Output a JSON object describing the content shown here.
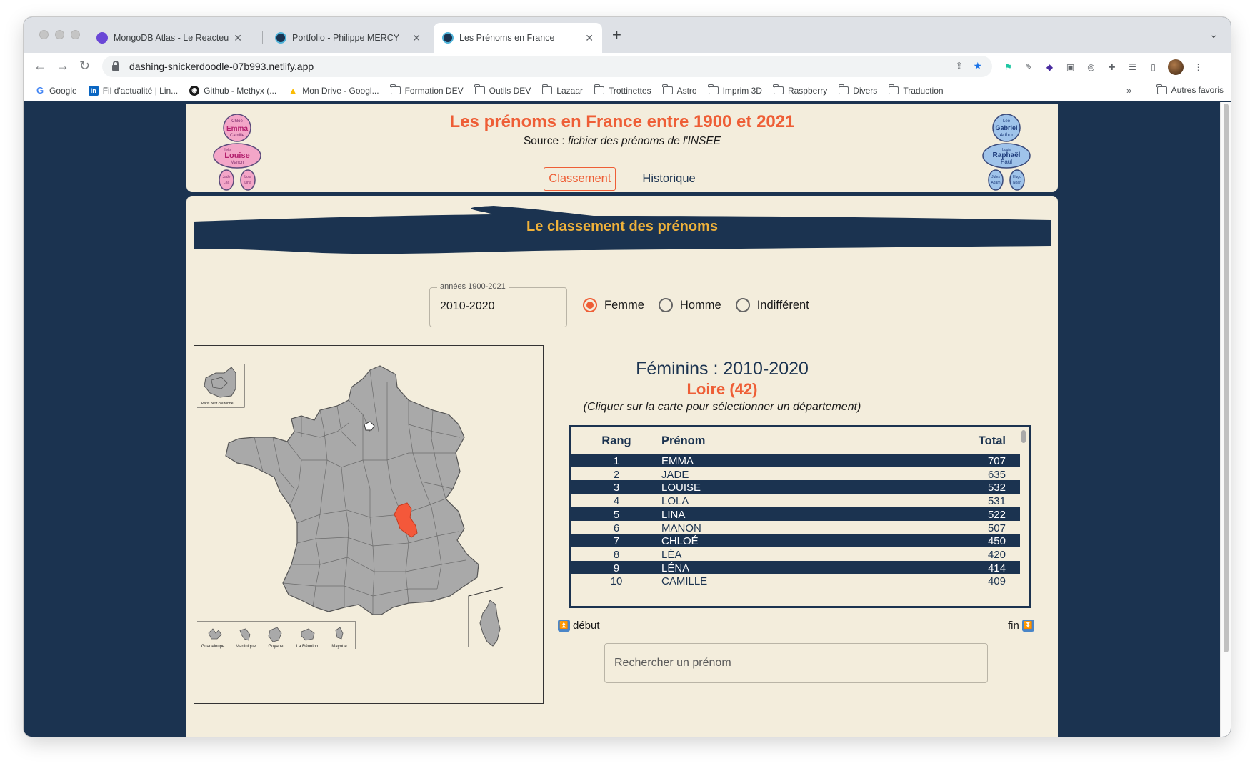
{
  "browser": {
    "tabs": [
      {
        "label": "MongoDB Atlas - Le Reacteur",
        "favicon_color": "#6a47d6"
      },
      {
        "label": "Portfolio - Philippe MERCY",
        "favicon_color": "#1b3350"
      },
      {
        "label": "Les Prénoms en France",
        "favicon_color": "#1b3350"
      }
    ],
    "url": "dashing-snickerdoodle-07b993.netlify.app",
    "bookmarks": [
      {
        "label": "Google",
        "kind": "google"
      },
      {
        "label": "Fil d'actualité | Lin...",
        "kind": "linkedin"
      },
      {
        "label": "Github - Methyx (...",
        "kind": "github"
      },
      {
        "label": "Mon Drive - Googl...",
        "kind": "drive"
      },
      {
        "label": "Formation DEV",
        "kind": "folder"
      },
      {
        "label": "Outils DEV",
        "kind": "folder"
      },
      {
        "label": "Lazaar",
        "kind": "folder"
      },
      {
        "label": "Trottinettes",
        "kind": "folder"
      },
      {
        "label": "Astro",
        "kind": "folder"
      },
      {
        "label": "Imprim 3D",
        "kind": "folder"
      },
      {
        "label": "Raspberry",
        "kind": "folder"
      },
      {
        "label": "Divers",
        "kind": "folder"
      },
      {
        "label": "Traduction",
        "kind": "folder"
      }
    ],
    "bookmarks_more": "»",
    "other_bookmarks": "Autres favoris"
  },
  "header": {
    "title": "Les prénoms en France entre 1900 et 2021",
    "source_label": "Source :",
    "source_text": "fichier des prénoms de l'INSEE",
    "nav": [
      {
        "label": "Classement",
        "active": true
      },
      {
        "label": "Historique",
        "active": false
      }
    ],
    "girl_names": [
      "Chloé",
      "Emma",
      "Camille",
      "Inès",
      "Louise",
      "Manon",
      "Jade",
      "Léa",
      "Lola",
      "Lina"
    ],
    "boy_names": [
      "Léo",
      "Gabriel",
      "Arthur",
      "Louis",
      "Raphaël",
      "Paul",
      "Jules",
      "Adam",
      "Hugo",
      "Noah"
    ]
  },
  "main": {
    "banner_title": "Le classement des prénoms",
    "period_legend": "années 1900-2021",
    "period_value": "2010-2020",
    "gender_options": [
      {
        "label": "Femme",
        "checked": true
      },
      {
        "label": "Homme",
        "checked": false
      },
      {
        "label": "Indifférent",
        "checked": false
      }
    ],
    "map": {
      "inset_paris": "Paris petit couronne",
      "overseas": [
        "Guadeloupe",
        "Martinique",
        "Guyane",
        "La Réunion",
        "Mayotte"
      ],
      "selected_department": "Loire",
      "selected_color": "#f4583a",
      "department_color": "#a9a9a9"
    },
    "ranking": {
      "title": "Féminins : 2010-2020",
      "department": "Loire (42)",
      "hint": "(Cliquer sur la carte pour sélectionner un département)",
      "columns": {
        "rank": "Rang",
        "name": "Prénom",
        "total": "Total"
      },
      "rows": [
        {
          "rank": "1",
          "name": "EMMA",
          "total": "707"
        },
        {
          "rank": "2",
          "name": "JADE",
          "total": "635"
        },
        {
          "rank": "3",
          "name": "LOUISE",
          "total": "532"
        },
        {
          "rank": "4",
          "name": "LOLA",
          "total": "531"
        },
        {
          "rank": "5",
          "name": "LINA",
          "total": "522"
        },
        {
          "rank": "6",
          "name": "MANON",
          "total": "507"
        },
        {
          "rank": "7",
          "name": "CHLOÉ",
          "total": "450"
        },
        {
          "rank": "8",
          "name": "LÉA",
          "total": "420"
        },
        {
          "rank": "9",
          "name": "LÉNA",
          "total": "414"
        },
        {
          "rank": "10",
          "name": "CAMILLE",
          "total": "409"
        }
      ]
    },
    "pager": {
      "start": "début",
      "end": "fin"
    },
    "search_placeholder": "Rechercher un prénom"
  },
  "colors": {
    "navy": "#1b3350",
    "cream": "#f3eddc",
    "accent": "#ee5e36",
    "banner_text": "#f0b23a"
  }
}
